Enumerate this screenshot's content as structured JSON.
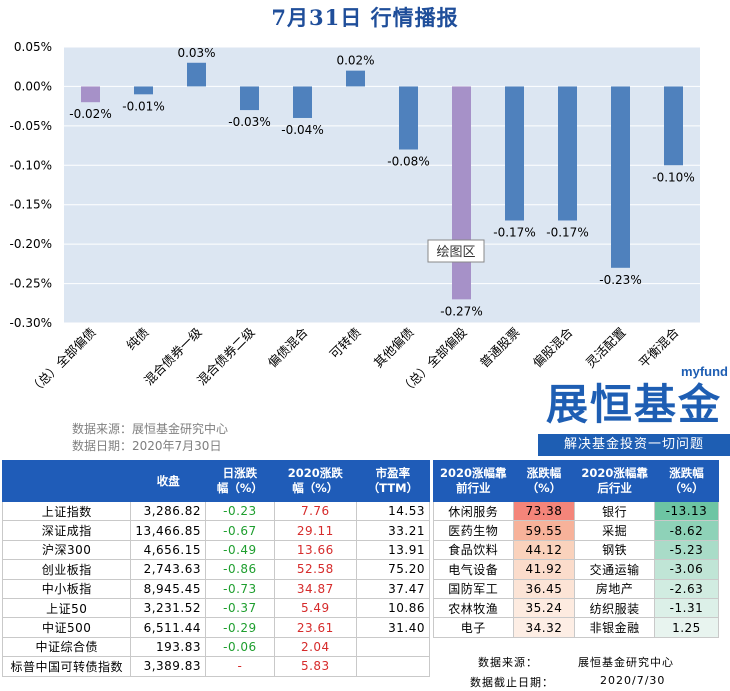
{
  "title": "7月31日  行情播报",
  "source": {
    "line1": "数据来源：展恒基金研究中心",
    "line2": "数据日期：2020年7月30日"
  },
  "brand": {
    "myfund": "myfund",
    "name": "展恒基金",
    "slogan": "解决基金投资一切问题"
  },
  "chart_data": {
    "type": "bar",
    "categories": [
      "（总）全部偏债",
      "纯债",
      "混合债券一级",
      "混合债券二级",
      "偏债混合",
      "可转债",
      "其他偏债",
      "（总）全部偏股",
      "普通股票",
      "偏股混合",
      "灵活配置",
      "平衡混合"
    ],
    "values": [
      -0.02,
      -0.01,
      0.03,
      -0.03,
      -0.04,
      0.02,
      -0.08,
      -0.27,
      -0.17,
      -0.17,
      -0.23,
      -0.1
    ],
    "data_labels": [
      "-0.02%",
      "-0.01%",
      "0.03%",
      "-0.03%",
      "-0.04%",
      "0.02%",
      "-0.08%",
      "-0.27%",
      "-0.17%",
      "-0.17%",
      "-0.23%",
      "-0.10%"
    ],
    "highlight_indices": [
      0,
      7
    ],
    "ylim": [
      -0.3,
      0.05
    ],
    "yticks": [
      "0.05%",
      "0.00%",
      "-0.05%",
      "-0.10%",
      "-0.15%",
      "-0.20%",
      "-0.25%",
      "-0.30%"
    ],
    "ytick_values": [
      0.05,
      0.0,
      -0.05,
      -0.1,
      -0.15,
      -0.2,
      -0.25,
      -0.3
    ],
    "colors": {
      "bar": "#4F81BD",
      "highlight": "#A691C8",
      "plot_bg": "#DCE6F2",
      "grid": "#ffffff"
    },
    "tooltip": "绘图区"
  },
  "index_table": {
    "headers": [
      "",
      "收盘",
      "日涨跌幅（%）",
      "2020涨跌幅（%）",
      "市盈率（TTM）"
    ],
    "header_lines": [
      [
        ""
      ],
      [
        "收盘"
      ],
      [
        "日涨跌",
        "幅（%）"
      ],
      [
        "2020涨跌",
        "幅（%）"
      ],
      [
        "市盈率",
        "（TTM）"
      ]
    ],
    "rows": [
      {
        "name": "上证指数",
        "close": "3,286.82",
        "day": "-0.23",
        "ytd": "7.76",
        "pe": "14.53"
      },
      {
        "name": "深证成指",
        "close": "13,466.85",
        "day": "-0.67",
        "ytd": "29.11",
        "pe": "33.21"
      },
      {
        "name": "沪深300",
        "close": "4,656.15",
        "day": "-0.49",
        "ytd": "13.66",
        "pe": "13.91"
      },
      {
        "name": "创业板指",
        "close": "2,743.63",
        "day": "-0.86",
        "ytd": "52.58",
        "pe": "75.20"
      },
      {
        "name": "中小板指",
        "close": "8,945.45",
        "day": "-0.73",
        "ytd": "34.87",
        "pe": "37.47"
      },
      {
        "name": "上证50",
        "close": "3,231.52",
        "day": "-0.37",
        "ytd": "5.49",
        "pe": "10.86"
      },
      {
        "name": "中证500",
        "close": "6,511.44",
        "day": "-0.29",
        "ytd": "23.61",
        "pe": "31.40"
      },
      {
        "name": "中证综合债",
        "close": "193.83",
        "day": "-0.06",
        "ytd": "2.04",
        "pe": ""
      },
      {
        "name": "标普中国可转债指数",
        "close": "3,389.83",
        "day": "-",
        "ytd": "5.83",
        "pe": ""
      }
    ]
  },
  "industry_table": {
    "header_lines": [
      [
        "2020涨幅靠",
        "前行业"
      ],
      [
        "涨跌幅",
        "（%）"
      ],
      [
        "2020涨幅靠",
        "后行业"
      ],
      [
        "涨跌幅",
        "（%）"
      ]
    ],
    "rows": [
      {
        "top": "休闲服务",
        "top_pct": "73.38",
        "bottom": "银行",
        "bottom_pct": "-13.13"
      },
      {
        "top": "医药生物",
        "top_pct": "59.55",
        "bottom": "采掘",
        "bottom_pct": "-8.62"
      },
      {
        "top": "食品饮料",
        "top_pct": "44.12",
        "bottom": "钢铁",
        "bottom_pct": "-5.23"
      },
      {
        "top": "电气设备",
        "top_pct": "41.92",
        "bottom": "交通运输",
        "bottom_pct": "-3.06"
      },
      {
        "top": "国防军工",
        "top_pct": "36.45",
        "bottom": "房地产",
        "bottom_pct": "-2.63"
      },
      {
        "top": "农林牧渔",
        "top_pct": "35.24",
        "bottom": "纺织服装",
        "bottom_pct": "-1.31"
      },
      {
        "top": "电子",
        "top_pct": "34.32",
        "bottom": "非银金融",
        "bottom_pct": "1.25"
      }
    ],
    "top_colors": [
      "#F4857A",
      "#F7B29A",
      "#FAD2BC",
      "#FBDCCB",
      "#FCE4D6",
      "#FDEBE0",
      "#FDEEE5"
    ],
    "bottom_colors": [
      "#6DC5A3",
      "#8ED2B8",
      "#A9DCC8",
      "#C0E5D6",
      "#D1ECE1",
      "#DCF0E8",
      "#E8F4EF"
    ]
  },
  "footer": {
    "source_label": "数据来源：",
    "source_value": "展恒基金研究中心",
    "date_label": "数据截止日期：",
    "date_value": "2020/7/30"
  }
}
